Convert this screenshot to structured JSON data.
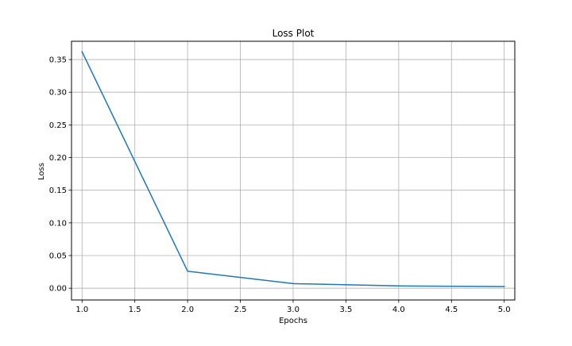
{
  "chart_data": {
    "type": "line",
    "title": "Loss Plot",
    "xlabel": "Epochs",
    "ylabel": "Loss",
    "xlim": [
      0.9,
      5.1
    ],
    "ylim": [
      -0.018,
      0.378
    ],
    "grid": true,
    "legend": null,
    "x_ticks": [
      1.0,
      1.5,
      2.0,
      2.5,
      3.0,
      3.5,
      4.0,
      4.5,
      5.0
    ],
    "x_tick_labels": [
      "1.0",
      "1.5",
      "2.0",
      "2.5",
      "3.0",
      "3.5",
      "4.0",
      "4.5",
      "5.0"
    ],
    "y_ticks": [
      0.0,
      0.05,
      0.1,
      0.15,
      0.2,
      0.25,
      0.3,
      0.35
    ],
    "y_tick_labels": [
      "0.00",
      "0.05",
      "0.10",
      "0.15",
      "0.20",
      "0.25",
      "0.30",
      "0.35"
    ],
    "series": [
      {
        "color": "#1f77b4",
        "x": [
          1,
          2,
          3,
          4,
          5
        ],
        "y": [
          0.362,
          0.026,
          0.007,
          0.0035,
          0.0025
        ]
      }
    ]
  }
}
